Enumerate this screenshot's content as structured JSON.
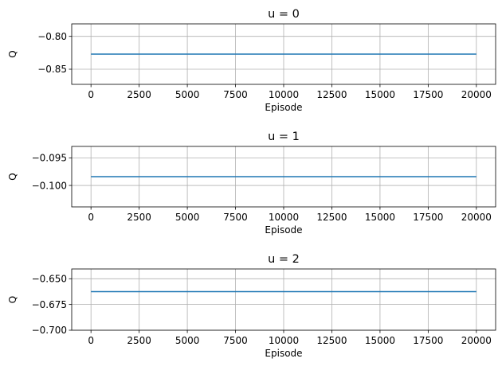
{
  "chart_data": [
    {
      "type": "line",
      "title": "u = 0",
      "xlabel": "Episode",
      "ylabel": "Q",
      "xlim": [
        -1000,
        21000
      ],
      "ylim": [
        -0.873,
        -0.781
      ],
      "xticks": [
        0,
        2500,
        5000,
        7500,
        10000,
        12500,
        15000,
        17500,
        20000
      ],
      "yticks": [
        -0.85,
        -0.8
      ],
      "ytick_labels": [
        "−0.85",
        "−0.80"
      ],
      "grid": true,
      "series": [
        {
          "x": [
            0,
            20000
          ],
          "y": [
            -0.827,
            -0.827
          ],
          "color": "#1f77b4"
        }
      ]
    },
    {
      "type": "line",
      "title": "u = 1",
      "xlabel": "Episode",
      "ylabel": "Q",
      "xlim": [
        -1000,
        21000
      ],
      "ylim": [
        -0.1039,
        -0.0929
      ],
      "xticks": [
        0,
        2500,
        5000,
        7500,
        10000,
        12500,
        15000,
        17500,
        20000
      ],
      "yticks": [
        -0.1,
        -0.095
      ],
      "ytick_labels": [
        "−0.100",
        "−0.095"
      ],
      "grid": true,
      "series": [
        {
          "x": [
            0,
            20000
          ],
          "y": [
            -0.0984,
            -0.0984
          ],
          "color": "#1f77b4"
        }
      ]
    },
    {
      "type": "line",
      "title": "u = 2",
      "xlabel": "Episode",
      "ylabel": "Q",
      "xlim": [
        -1000,
        21000
      ],
      "ylim": [
        -0.7,
        -0.6405
      ],
      "xticks": [
        0,
        2500,
        5000,
        7500,
        10000,
        12500,
        15000,
        17500,
        20000
      ],
      "yticks": [
        -0.7,
        -0.675,
        -0.65
      ],
      "ytick_labels": [
        "−0.700",
        "−0.675",
        "−0.650"
      ],
      "grid": true,
      "series": [
        {
          "x": [
            0,
            20000
          ],
          "y": [
            -0.6625,
            -0.6625
          ],
          "color": "#1f77b4"
        }
      ]
    }
  ]
}
